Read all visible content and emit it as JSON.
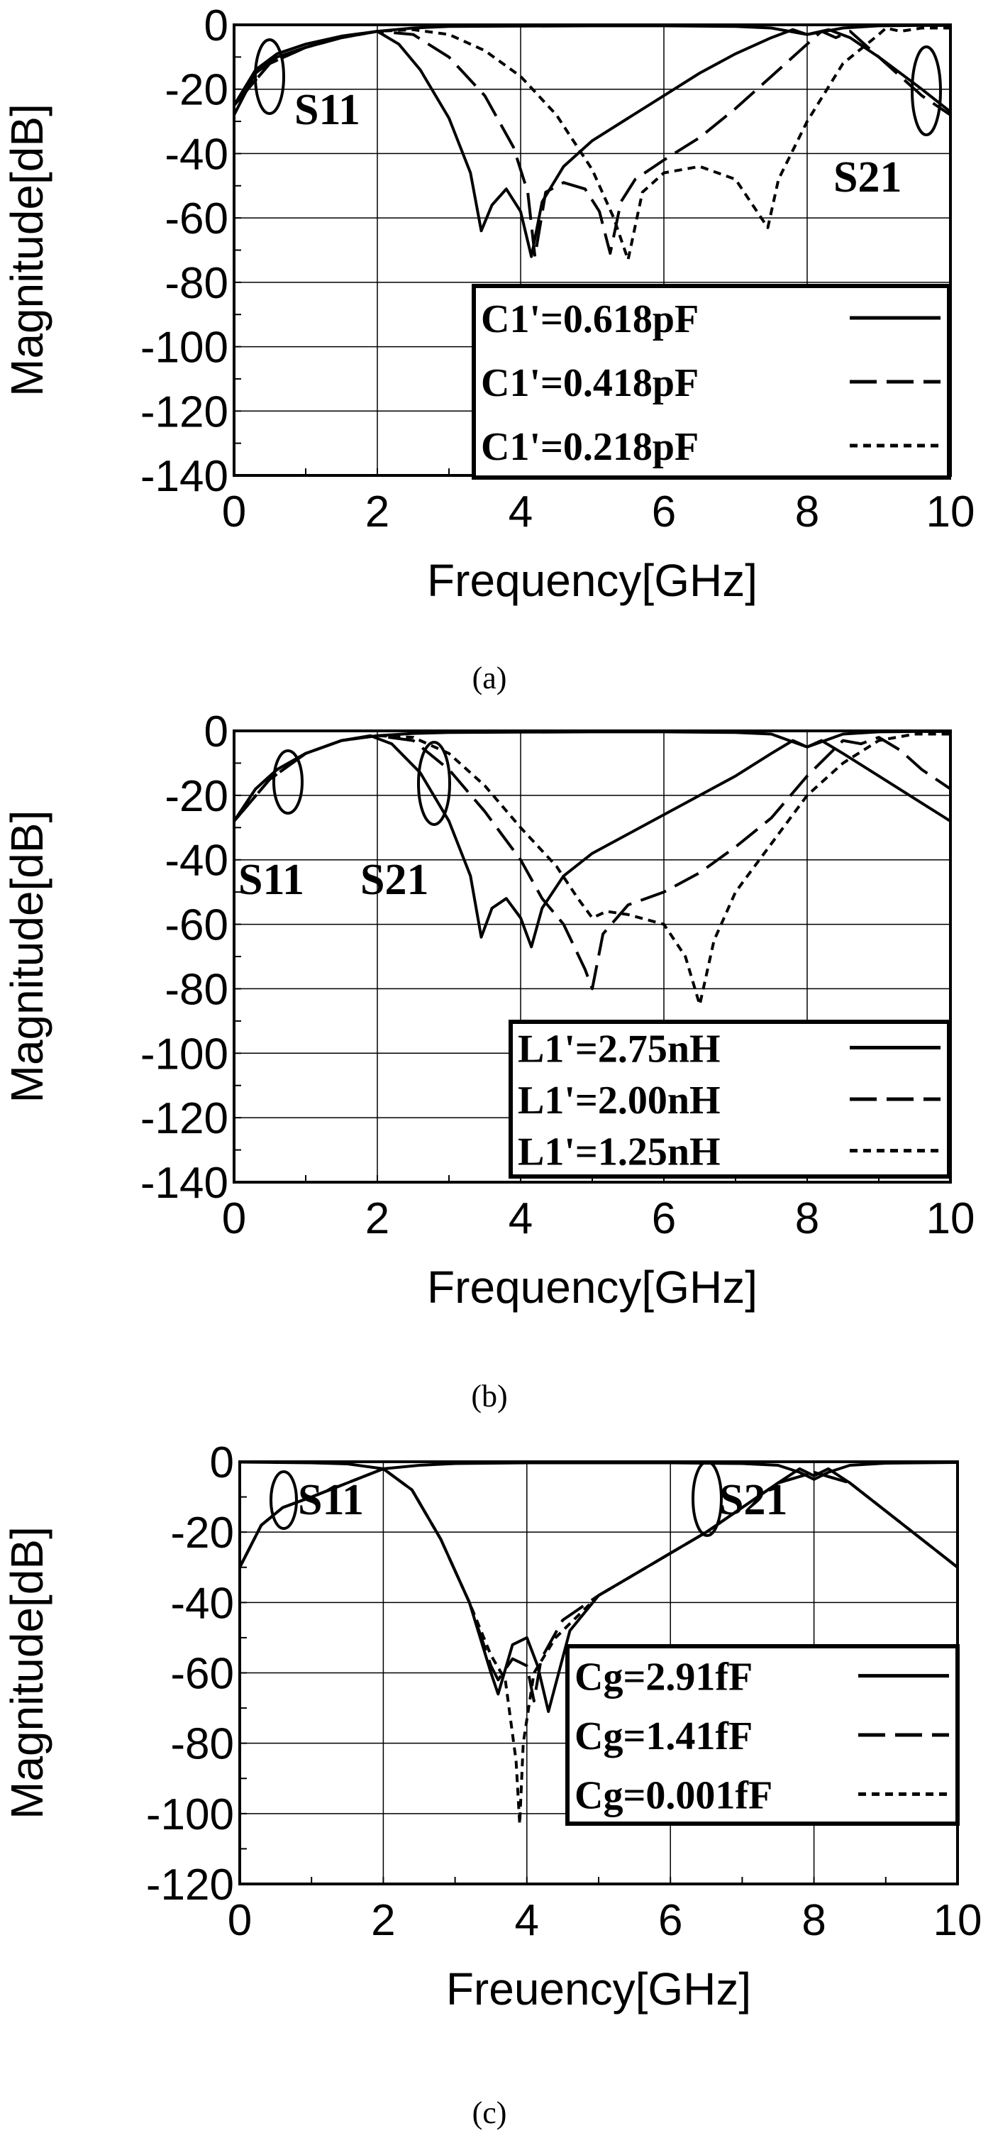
{
  "chart_data": [
    {
      "type": "line",
      "caption": "(a)",
      "xlabel": "Frequency[GHz]",
      "ylabel": "Magnitude[dB]",
      "xlim": [
        0,
        10
      ],
      "ylim": [
        -140,
        0
      ],
      "xticks": [
        "0",
        "2",
        "4",
        "6",
        "8",
        "10"
      ],
      "yticks": [
        "0",
        "-20",
        "-40",
        "-60",
        "-80",
        "-100",
        "-120",
        "-140"
      ],
      "grid": true,
      "legend_position": "lower-right",
      "annotations": [
        {
          "text": "S11"
        },
        {
          "text": "S21"
        }
      ],
      "series": [
        {
          "name": "C1'=0.618pF",
          "dash": "solid",
          "parameter": "S21",
          "x": [
            0.0,
            0.3,
            0.6,
            1.0,
            1.5,
            2.0,
            2.3,
            2.6,
            3.0,
            3.3,
            3.45,
            3.6,
            3.8,
            4.0,
            4.15,
            4.3,
            4.6,
            5.0,
            5.5,
            6.0,
            6.5,
            7.0,
            7.5,
            7.8,
            8.0,
            8.3,
            8.6,
            8.8,
            9.0,
            9.3,
            9.6,
            10.0
          ],
          "y": [
            -28,
            -15,
            -10,
            -7,
            -4,
            -2,
            -6,
            -14,
            -29,
            -46,
            -64,
            -56,
            -51,
            -58,
            -72,
            -55,
            -44,
            -36,
            -29,
            -22,
            -15,
            -9,
            -4,
            -1.5,
            -3,
            -1.5,
            -4,
            -7,
            -10,
            -15,
            -20,
            -27
          ]
        },
        {
          "name": "C1'=0.618pF",
          "dash": "solid",
          "parameter": "S11",
          "x": [
            0.0,
            0.3,
            0.6,
            1.0,
            1.5,
            2.0,
            2.5,
            3.0,
            4.0,
            5.0,
            6.0,
            7.0,
            7.5,
            8.0,
            8.5,
            9.0,
            9.5,
            10.0
          ],
          "y": [
            -25,
            -14,
            -9,
            -6,
            -3.5,
            -2,
            -1,
            -0.5,
            -0.4,
            -0.3,
            -0.3,
            -0.5,
            -1,
            -3,
            -1,
            -0.3,
            -0.2,
            -0.2
          ]
        },
        {
          "name": "C1'=0.418pF",
          "dash": "dashed",
          "parameter": "S21",
          "x": [
            0.0,
            0.5,
            1.0,
            1.5,
            2.0,
            2.5,
            3.0,
            3.5,
            3.9,
            4.1,
            4.2,
            4.35,
            4.6,
            4.9,
            5.1,
            5.25,
            5.4,
            5.6,
            6.0,
            6.5,
            7.0,
            7.5,
            8.0,
            8.2,
            8.4,
            8.6,
            8.8,
            9.0,
            9.3,
            9.6,
            10.0
          ],
          "y": [
            -25,
            -12,
            -7,
            -4,
            -2,
            -3,
            -10,
            -22,
            -38,
            -52,
            -72,
            -52,
            -49,
            -51,
            -58,
            -71,
            -55,
            -48,
            -42,
            -35,
            -26,
            -16,
            -6,
            -2,
            -4,
            -2,
            -6,
            -10,
            -16,
            -22,
            -28
          ]
        },
        {
          "name": "C1'=0.218pF",
          "dash": "dotted",
          "parameter": "S21",
          "x": [
            0.0,
            0.5,
            1.0,
            1.5,
            2.0,
            2.5,
            3.0,
            3.5,
            4.0,
            4.5,
            5.0,
            5.3,
            5.5,
            5.7,
            6.0,
            6.5,
            7.0,
            7.3,
            7.45,
            7.6,
            8.0,
            8.5,
            9.0,
            9.1,
            9.3,
            9.6,
            10.0
          ],
          "y": [
            -25,
            -12,
            -7,
            -4,
            -2,
            -1.5,
            -3,
            -8,
            -16,
            -28,
            -45,
            -60,
            -73,
            -52,
            -46,
            -44,
            -48,
            -58,
            -63,
            -48,
            -30,
            -12,
            -3,
            -1,
            -2,
            -1,
            -1
          ]
        }
      ]
    },
    {
      "type": "line",
      "caption": "(b)",
      "xlabel": "Frequency[GHz]",
      "ylabel": "Magnitude[dB]",
      "xlim": [
        0,
        10
      ],
      "ylim": [
        -140,
        0
      ],
      "xticks": [
        "0",
        "2",
        "4",
        "6",
        "8",
        "10"
      ],
      "yticks": [
        "0",
        "-20",
        "-40",
        "-60",
        "-80",
        "-100",
        "-120",
        "-140"
      ],
      "grid": true,
      "legend_position": "lower-right",
      "annotations": [
        {
          "text": "S11"
        },
        {
          "text": "S21"
        }
      ],
      "series": [
        {
          "name": "L1'=2.75nH",
          "dash": "solid",
          "parameter": "S21",
          "x": [
            0.0,
            0.3,
            0.6,
            1.0,
            1.5,
            1.9,
            2.2,
            2.6,
            3.0,
            3.3,
            3.45,
            3.6,
            3.8,
            4.0,
            4.15,
            4.3,
            4.6,
            5.0,
            5.5,
            6.0,
            6.5,
            7.0,
            7.5,
            7.8,
            8.0,
            8.2,
            8.5,
            9.0,
            9.5,
            10.0
          ],
          "y": [
            -28,
            -18,
            -12,
            -7,
            -3,
            -1.5,
            -4,
            -13,
            -28,
            -45,
            -64,
            -55,
            -52,
            -58,
            -67,
            -55,
            -45,
            -38,
            -32,
            -26,
            -20,
            -14,
            -7,
            -3,
            -5,
            -3,
            -7,
            -14,
            -21,
            -28
          ]
        },
        {
          "name": "L1'=2.00nH",
          "dash": "dashed",
          "parameter": "S21",
          "x": [
            0.0,
            0.5,
            1.0,
            1.5,
            2.0,
            2.5,
            3.0,
            3.5,
            4.0,
            4.3,
            4.6,
            4.9,
            5.0,
            5.15,
            5.5,
            6.0,
            6.5,
            7.0,
            7.5,
            8.0,
            8.5,
            8.75,
            9.0,
            9.3,
            9.6,
            10.0
          ],
          "y": [
            -28,
            -15,
            -7,
            -3,
            -1.5,
            -3,
            -12,
            -25,
            -40,
            -52,
            -60,
            -74,
            -80,
            -63,
            -54,
            -50,
            -44,
            -36,
            -27,
            -14,
            -3,
            -4,
            -2,
            -6,
            -12,
            -18
          ]
        },
        {
          "name": "L1'=1.25nH",
          "dash": "dotted",
          "parameter": "S21",
          "x": [
            0.0,
            0.5,
            1.0,
            1.5,
            2.0,
            2.5,
            3.0,
            3.5,
            4.0,
            4.5,
            4.8,
            5.0,
            5.2,
            5.5,
            6.0,
            6.3,
            6.5,
            6.7,
            7.0,
            7.5,
            8.0,
            8.5,
            9.0,
            9.5,
            10.0
          ],
          "y": [
            -28,
            -15,
            -7,
            -3,
            -1.5,
            -2,
            -7,
            -17,
            -30,
            -42,
            -52,
            -58,
            -56,
            -57,
            -60,
            -70,
            -85,
            -65,
            -50,
            -35,
            -20,
            -10,
            -3,
            -1,
            -1
          ]
        },
        {
          "name": "L1'=2.75nH",
          "dash": "solid",
          "parameter": "S11",
          "x": [
            0.0,
            0.3,
            0.6,
            1.0,
            1.5,
            2.0,
            2.5,
            3.0,
            4.0,
            5.0,
            6.0,
            7.0,
            7.5,
            8.0,
            8.5,
            9.0,
            9.5,
            10.0
          ],
          "y": [
            -28,
            -18,
            -12,
            -7,
            -3,
            -1.5,
            -0.8,
            -0.5,
            -0.4,
            -0.3,
            -0.3,
            -0.5,
            -1,
            -5,
            -1,
            -0.3,
            -0.2,
            -0.2
          ]
        }
      ]
    },
    {
      "type": "line",
      "caption": "(c)",
      "xlabel": "Freuency[GHz]",
      "ylabel": "Magnitude[dB]",
      "xlim": [
        0,
        10
      ],
      "ylim": [
        -120,
        0
      ],
      "xticks": [
        "0",
        "2",
        "4",
        "6",
        "8",
        "10"
      ],
      "yticks": [
        "0",
        "-20",
        "-40",
        "-60",
        "-80",
        "-100",
        "-120"
      ],
      "grid": true,
      "legend_position": "lower-right",
      "annotations": [
        {
          "text": "S11"
        },
        {
          "text": "S21"
        }
      ],
      "series": [
        {
          "name": "Cg=2.91fF",
          "dash": "solid",
          "parameter": "S21",
          "x": [
            0.0,
            0.3,
            0.6,
            1.0,
            1.5,
            2.0,
            2.4,
            2.8,
            3.2,
            3.5,
            3.6,
            3.8,
            4.0,
            4.15,
            4.3,
            4.6,
            5.0,
            5.5,
            6.0,
            6.5,
            7.0,
            7.5,
            7.8,
            8.0,
            8.2,
            8.5,
            9.0,
            9.5,
            10.0
          ],
          "y": [
            -30,
            -18,
            -13,
            -10,
            -6,
            -2,
            -8,
            -22,
            -40,
            -60,
            -66,
            -52,
            -50,
            -58,
            -71,
            -48,
            -38,
            -32,
            -26,
            -20,
            -13,
            -6,
            -2,
            -4,
            -2,
            -6,
            -14,
            -22,
            -30
          ]
        },
        {
          "name": "Cg=1.41fF",
          "dash": "dashed",
          "parameter": "S21",
          "x": [
            0.0,
            0.3,
            0.6,
            1.0,
            1.5,
            2.0,
            2.4,
            2.8,
            3.2,
            3.5,
            3.6,
            3.8,
            3.9,
            4.0,
            4.1,
            4.2,
            4.5,
            5.0,
            5.5,
            6.0,
            6.5,
            7.0,
            7.5,
            8.0,
            8.5,
            9.0,
            9.5,
            10.0
          ],
          "y": [
            -30,
            -18,
            -13,
            -10,
            -6,
            -2,
            -8,
            -22,
            -40,
            -58,
            -62,
            -56,
            -57,
            -58,
            -68,
            -56,
            -45,
            -38,
            -32,
            -26,
            -20,
            -13,
            -6,
            -3,
            -6,
            -14,
            -22,
            -30
          ]
        },
        {
          "name": "Cg=0.001fF",
          "dash": "dotted",
          "parameter": "S21",
          "x": [
            0.0,
            0.3,
            0.6,
            1.0,
            1.5,
            2.0,
            2.4,
            2.8,
            3.2,
            3.5,
            3.7,
            3.85,
            3.9,
            3.95,
            4.1,
            4.4,
            5.0,
            5.5,
            6.0,
            6.5,
            7.0,
            7.5,
            8.0,
            8.5,
            9.0,
            9.5,
            10.0
          ],
          "y": [
            -30,
            -18,
            -13,
            -10,
            -6,
            -2,
            -8,
            -22,
            -40,
            -55,
            -62,
            -85,
            -103,
            -80,
            -60,
            -50,
            -38,
            -32,
            -26,
            -20,
            -13,
            -6,
            -3,
            -6,
            -14,
            -22,
            -30
          ]
        },
        {
          "name": "Cg=2.91fF",
          "dash": "solid",
          "parameter": "S11",
          "x": [
            0.0,
            0.5,
            1.0,
            1.5,
            2.0,
            2.5,
            3.0,
            4.0,
            5.0,
            6.0,
            7.0,
            7.5,
            7.8,
            8.0,
            8.2,
            8.5,
            9.0,
            10.0
          ],
          "y": [
            -0.1,
            -0.2,
            -0.3,
            -0.6,
            -2,
            -1,
            -0.5,
            -0.3,
            -0.3,
            -0.3,
            -0.5,
            -1,
            -3,
            -5,
            -3,
            -1,
            -0.4,
            -0.2
          ]
        }
      ]
    }
  ]
}
